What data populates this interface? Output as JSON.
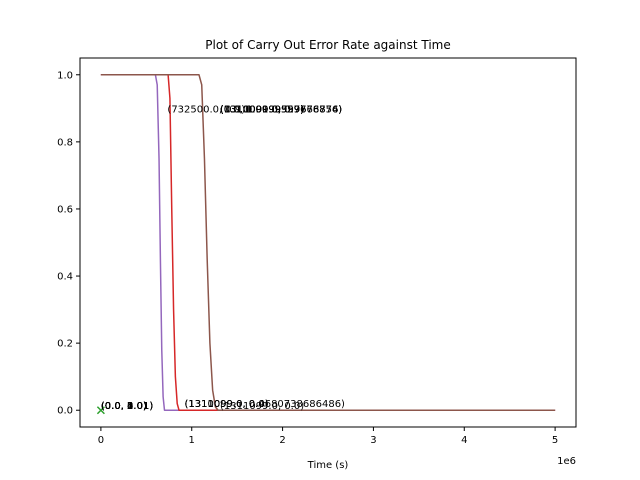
{
  "chart_data": {
    "type": "line",
    "title": "Plot of Carry Out Error Rate against Time",
    "xlabel": "Time (s)",
    "ylabel": "",
    "x_offset_text": "1e6",
    "xlim": [
      -230000,
      5230000
    ],
    "ylim": [
      -0.05,
      1.05
    ],
    "x_scale": 1000000,
    "xticks": [
      0,
      1000000,
      2000000,
      3000000,
      4000000,
      5000000
    ],
    "xtick_labels": [
      "0",
      "1",
      "2",
      "3",
      "4",
      "5"
    ],
    "yticks": [
      0.0,
      0.2,
      0.4,
      0.6,
      0.8,
      1.0
    ],
    "ytick_labels": [
      "0.0",
      "0.2",
      "0.4",
      "0.6",
      "0.8",
      "1.0"
    ],
    "grid": false,
    "legend": false,
    "series": [
      {
        "color": "#9467bd",
        "points": [
          [
            0,
            1
          ],
          [
            600000,
            1
          ],
          [
            620000,
            0.97
          ],
          [
            640000,
            0.75
          ],
          [
            655000,
            0.45
          ],
          [
            670000,
            0.18
          ],
          [
            685000,
            0.04
          ],
          [
            700000,
            0
          ],
          [
            5000000,
            0
          ]
        ]
      },
      {
        "color": "#d62728",
        "points": [
          [
            0,
            1
          ],
          [
            740000,
            1
          ],
          [
            760000,
            0.93
          ],
          [
            780000,
            0.6
          ],
          [
            800000,
            0.3
          ],
          [
            820000,
            0.1
          ],
          [
            840000,
            0.02
          ],
          [
            860000,
            0
          ],
          [
            5000000,
            0
          ]
        ]
      },
      {
        "color": "#8c564b",
        "points": [
          [
            0,
            1
          ],
          [
            1080000,
            1
          ],
          [
            1110000,
            0.97
          ],
          [
            1140000,
            0.75
          ],
          [
            1170000,
            0.45
          ],
          [
            1200000,
            0.2
          ],
          [
            1230000,
            0.06
          ],
          [
            1260000,
            0.01
          ],
          [
            1290000,
            0
          ],
          [
            5000000,
            0
          ]
        ]
      }
    ],
    "markers": [
      {
        "x": 0,
        "y": 0,
        "symbol": "x",
        "color": "#2ca02c"
      }
    ],
    "annotations": [
      {
        "text": "(732500.0, 0.9)",
        "x": 732500,
        "y": 0.9
      },
      {
        "text": "(1310000.0, 0.9)",
        "x": 1310000,
        "y": 0.9
      },
      {
        "text": "(1310099.0, 0.9)",
        "x": 1310099,
        "y": 0.9
      },
      {
        "text": "(1310099.0, 0.9)",
        "x": 1310099,
        "y": 0.9
      },
      {
        "text": "(1311090.0, 0.9)",
        "x": 1311090,
        "y": 0.9
      },
      {
        "text": "(1311099.0, 0.0)",
        "x": 1311099,
        "y": 0.0
      },
      {
        "text": "(0.0, 0.0)",
        "x": 0,
        "y": 0.0
      },
      {
        "text": "(0.0, 1.0)",
        "x": 0,
        "y": 0.0
      },
      {
        "text": "(0.0, 2.0)",
        "x": 0,
        "y": 0.0
      },
      {
        "text": "(0.0, 3.0)",
        "x": 0,
        "y": 0.0
      },
      {
        "text": "(0.0, 4.0)",
        "x": 0,
        "y": 0.0
      },
      {
        "text": "(0.0, 1.01)",
        "x": 0,
        "y": 0.0
      },
      {
        "text": "(0.0, 2.01)",
        "x": 0,
        "y": 0.0
      },
      {
        "text": "(0.0, 3.01)",
        "x": 0,
        "y": 0.0
      },
      {
        "text": "(0.0, 4.01)",
        "x": 0,
        "y": 0.0
      }
    ],
    "right_annotation_texts": [
      "(0.0, 1.0999597676876)",
      "(0.0, 0.0199959768754)",
      "(0.0, 1.0999597676876)"
    ],
    "bottom_right_annotation_texts": [
      "(1310099.0, 0.0)",
      "(1311099.0, 0.0)",
      "(1311099.0, 0.4680738686486)"
    ]
  }
}
